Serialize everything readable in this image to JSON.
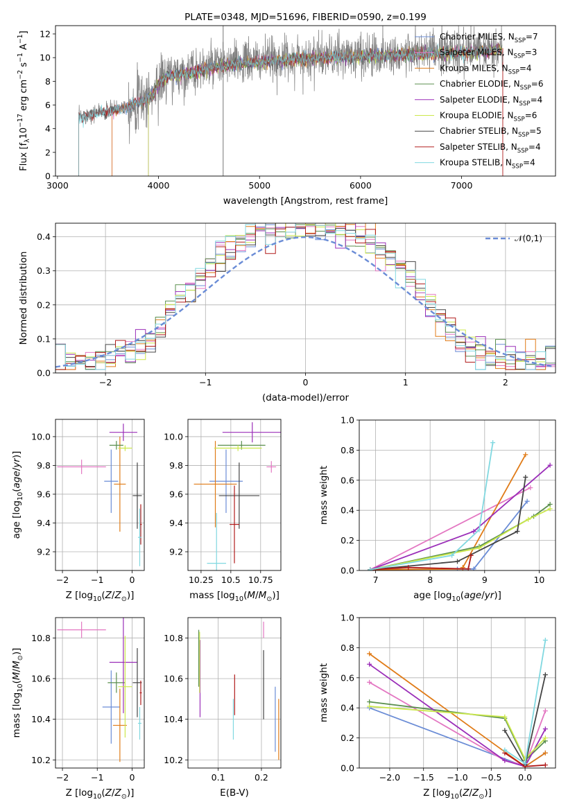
{
  "colors": {
    "Chabrier MILES": "#6a8cd6",
    "Salpeter MILES": "#e377c2",
    "Kroupa MILES": "#e07b17",
    "Chabrier ELODIE": "#5a8f4e",
    "Salpeter ELODIE": "#9a2db8",
    "Kroupa ELODIE": "#cbe84a",
    "Chabrier STELIB": "#444444",
    "Salpeter STELIB": "#b01a1a",
    "Kroupa STELIB": "#80d8e0",
    "data": "#808080"
  },
  "chart_data": [
    {
      "id": "spectrum",
      "type": "line",
      "title": "PLATE=0348, MJD=51696, FIBERID=0590, z=0.199",
      "xlabel": "wavelength [Angstrom, rest frame]",
      "ylabel": "Flux [f_λ10^-17 erg cm^-2 s^-1 A^-1]",
      "xlim": [
        2980,
        7930
      ],
      "ylim": [
        0,
        12.7
      ],
      "xticks": [
        3000,
        4000,
        5000,
        6000,
        7000
      ],
      "yticks": [
        0,
        2,
        4,
        6,
        8,
        10,
        12
      ],
      "legend_position": "right",
      "legend": [
        {
          "name": "Chabrier MILES",
          "nssp": "7"
        },
        {
          "name": "Salpeter MILES",
          "nssp": "3"
        },
        {
          "name": "Kroupa MILES",
          "nssp": "4"
        },
        {
          "name": "Chabrier ELODIE",
          "nssp": "6"
        },
        {
          "name": "Salpeter ELODIE",
          "nssp": "4"
        },
        {
          "name": "Kroupa ELODIE",
          "nssp": "6"
        },
        {
          "name": "Chabrier STELIB",
          "nssp": "5"
        },
        {
          "name": "Salpeter STELIB",
          "nssp": "4"
        },
        {
          "name": "Kroupa STELIB",
          "nssp": "4"
        }
      ],
      "continuum": {
        "wavelength": [
          3210,
          3400,
          3550,
          3700,
          3850,
          3950,
          4000,
          4100,
          4300,
          4500,
          4800,
          5100,
          5400,
          5700,
          6000,
          6300,
          6600,
          6900,
          7200,
          7400
        ],
        "flux": [
          5.0,
          5.4,
          5.6,
          6.0,
          6.5,
          7.0,
          8.0,
          8.5,
          8.8,
          9.2,
          9.6,
          9.8,
          10.0,
          10.1,
          10.2,
          10.3,
          10.4,
          10.5,
          10.6,
          10.8
        ]
      },
      "model_starts": {
        "Chabrier MILES": 3540,
        "Salpeter MILES": 3540,
        "Kroupa MILES": 3540,
        "Chabrier ELODIE": 3900,
        "Salpeter ELODIE": 3900,
        "Kroupa ELODIE": 3900,
        "Chabrier STELIB": 3210,
        "Salpeter STELIB": 3210,
        "Kroupa STELIB": 3210
      },
      "data_range": [
        3210,
        7410
      ]
    },
    {
      "id": "residuals",
      "type": "histogram",
      "xlabel": "(data-model)/error",
      "ylabel": "Normed distribution",
      "xlim": [
        -2.5,
        2.5
      ],
      "ylim": [
        0,
        0.44
      ],
      "xticks": [
        -2,
        -1,
        0,
        1,
        2
      ],
      "yticks": [
        0.0,
        0.1,
        0.2,
        0.3,
        0.4
      ],
      "legend_label": "𝒩(0,1)",
      "legend_position": "top-right",
      "bin_width": 0.1,
      "gaussian": {
        "mu": 0,
        "sigma": 1
      }
    },
    {
      "id": "z-age",
      "type": "errorbar",
      "xlabel": "Z [log₁₀(Z/Z⊙)]",
      "ylabel": "age  [log₁₀(age/yr)]",
      "xlim": [
        -2.2,
        0.35
      ],
      "ylim": [
        9.07,
        10.12
      ],
      "xticks": [
        -2,
        -1,
        0
      ],
      "yticks": [
        9.2,
        9.4,
        9.6,
        9.8,
        10.0
      ],
      "points": [
        {
          "model": "Chabrier MILES",
          "x": -0.6,
          "xerr": 0.2,
          "y": 9.69,
          "yerr": 0.22
        },
        {
          "model": "Salpeter MILES",
          "x": -1.45,
          "xerr": 0.7,
          "y": 9.79,
          "yerr": 0.05
        },
        {
          "model": "Kroupa MILES",
          "x": -0.35,
          "xerr": 0.17,
          "y": 9.67,
          "yerr": 0.33
        },
        {
          "model": "Chabrier ELODIE",
          "x": -0.45,
          "xerr": 0.2,
          "y": 9.94,
          "yerr": 0.03
        },
        {
          "model": "Salpeter ELODIE",
          "x": -0.25,
          "xerr": 0.4,
          "y": 10.03,
          "yerr": 0.06
        },
        {
          "model": "Kroupa ELODIE",
          "x": -0.2,
          "xerr": 0.2,
          "y": 9.92,
          "yerr": 0.02
        },
        {
          "model": "Chabrier STELIB",
          "x": 0.15,
          "xerr": 0.13,
          "y": 9.59,
          "yerr": 0.23
        },
        {
          "model": "Salpeter STELIB",
          "x": 0.25,
          "xerr": 0.03,
          "y": 9.39,
          "yerr": 0.14
        },
        {
          "model": "Kroupa STELIB",
          "x": 0.22,
          "xerr": 0.05,
          "y": 9.3,
          "yerr": 0.2
        }
      ]
    },
    {
      "id": "mass-age",
      "type": "errorbar",
      "xlabel": "mass [log₁₀(M/M⊙)]",
      "ylabel": "",
      "xlim": [
        10.14,
        10.92
      ],
      "ylim": [
        9.07,
        10.12
      ],
      "xticks": [
        10.25,
        10.5,
        10.75
      ],
      "yticks": [
        9.2,
        9.4,
        9.6,
        9.8,
        10.0
      ],
      "points": [
        {
          "model": "Chabrier MILES",
          "x": 10.46,
          "xerr": 0.14,
          "y": 9.69,
          "yerr": 0.22
        },
        {
          "model": "Salpeter MILES",
          "x": 10.84,
          "xerr": 0.04,
          "y": 9.79,
          "yerr": 0.04
        },
        {
          "model": "Kroupa MILES",
          "x": 10.37,
          "xerr": 0.18,
          "y": 9.67,
          "yerr": 0.3
        },
        {
          "model": "Chabrier ELODIE",
          "x": 10.59,
          "xerr": 0.2,
          "y": 9.94,
          "yerr": 0.03
        },
        {
          "model": "Salpeter ELODIE",
          "x": 10.68,
          "xerr": 0.25,
          "y": 10.03,
          "yerr": 0.07
        },
        {
          "model": "Kroupa ELODIE",
          "x": 10.56,
          "xerr": 0.2,
          "y": 9.92,
          "yerr": 0.02
        },
        {
          "model": "Chabrier STELIB",
          "x": 10.57,
          "xerr": 0.17,
          "y": 9.59,
          "yerr": 0.23
        },
        {
          "model": "Salpeter STELIB",
          "x": 10.53,
          "xerr": 0.04,
          "y": 9.39,
          "yerr": 0.27
        },
        {
          "model": "Kroupa STELIB",
          "x": 10.38,
          "xerr": 0.08,
          "y": 9.12,
          "yerr": 0.35
        }
      ]
    },
    {
      "id": "age-weight",
      "type": "line",
      "xlabel": "age  [log₁₀(age/yr)]",
      "ylabel": "mass weight",
      "xlim": [
        6.7,
        10.3
      ],
      "ylim": [
        0,
        1.0
      ],
      "xticks": [
        7,
        8,
        9,
        10
      ],
      "yticks": [
        0.0,
        0.2,
        0.4,
        0.6,
        0.8,
        1.0
      ],
      "series": [
        {
          "model": "Chabrier MILES",
          "x": [
            6.9,
            8.5,
            8.8,
            9.78
          ],
          "y": [
            0.005,
            0.01,
            0.01,
            0.46
          ]
        },
        {
          "model": "Salpeter MILES",
          "x": [
            6.9,
            9.84
          ],
          "y": [
            0.005,
            0.55
          ]
        },
        {
          "model": "Kroupa MILES",
          "x": [
            6.9,
            8.6,
            8.6,
            9.75
          ],
          "y": [
            0.005,
            0.01,
            0.02,
            0.77
          ]
        },
        {
          "model": "Chabrier ELODIE",
          "x": [
            6.9,
            8.9,
            9.9,
            10.2
          ],
          "y": [
            0.005,
            0.16,
            0.36,
            0.44
          ]
        },
        {
          "model": "Salpeter ELODIE",
          "x": [
            6.9,
            8.8,
            10.2
          ],
          "y": [
            0.005,
            0.26,
            0.7
          ]
        },
        {
          "model": "Kroupa ELODIE",
          "x": [
            6.9,
            8.9,
            9.8,
            10.2
          ],
          "y": [
            0.005,
            0.15,
            0.34,
            0.41
          ]
        },
        {
          "model": "Chabrier STELIB",
          "x": [
            6.9,
            8.5,
            9.6,
            9.75
          ],
          "y": [
            0.005,
            0.06,
            0.26,
            0.62
          ]
        },
        {
          "model": "Salpeter STELIB",
          "x": [
            6.9,
            7.6,
            8.7,
            8.75
          ],
          "y": [
            0.005,
            0.02,
            0.01,
            0.1
          ]
        },
        {
          "model": "Kroupa STELIB",
          "x": [
            6.9,
            8.4,
            8.9,
            9.15
          ],
          "y": [
            0.005,
            0.1,
            0.27,
            0.85
          ]
        }
      ]
    },
    {
      "id": "z-mass",
      "type": "errorbar",
      "xlabel": "Z [log₁₀(Z/Z⊙)]",
      "ylabel": "mass [log₁₀(M/M⊙)]",
      "xlim": [
        -2.2,
        0.35
      ],
      "ylim": [
        10.16,
        10.9
      ],
      "xticks": [
        -2,
        -1,
        0
      ],
      "yticks": [
        10.2,
        10.4,
        10.6,
        10.8
      ],
      "points": [
        {
          "model": "Chabrier MILES",
          "x": -0.6,
          "xerr": 0.25,
          "y": 10.46,
          "yerr": 0.18
        },
        {
          "model": "Salpeter MILES",
          "x": -1.45,
          "xerr": 0.7,
          "y": 10.84,
          "yerr": 0.04
        },
        {
          "model": "Kroupa MILES",
          "x": -0.35,
          "xerr": 0.2,
          "y": 10.37,
          "yerr": 0.18
        },
        {
          "model": "Chabrier ELODIE",
          "x": -0.45,
          "xerr": 0.25,
          "y": 10.58,
          "yerr": 0.05
        },
        {
          "model": "Salpeter ELODIE",
          "x": -0.25,
          "xerr": 0.4,
          "y": 10.68,
          "yerr": 0.25
        },
        {
          "model": "Kroupa ELODIE",
          "x": -0.2,
          "xerr": 0.2,
          "y": 10.56,
          "yerr": 0.25
        },
        {
          "model": "Chabrier STELIB",
          "x": 0.15,
          "xerr": 0.13,
          "y": 10.58,
          "yerr": 0.17
        },
        {
          "model": "Salpeter STELIB",
          "x": 0.25,
          "xerr": 0.03,
          "y": 10.53,
          "yerr": 0.06
        },
        {
          "model": "Kroupa STELIB",
          "x": 0.22,
          "xerr": 0.05,
          "y": 10.38,
          "yerr": 0.08
        }
      ]
    },
    {
      "id": "ebv-mass",
      "type": "errorbar",
      "xlabel": "E(B-V)",
      "ylabel": "",
      "xlim": [
        0.03,
        0.245
      ],
      "ylim": [
        10.16,
        10.9
      ],
      "xticks": [
        0.1,
        0.2
      ],
      "yticks": [
        10.2,
        10.4,
        10.6,
        10.8
      ],
      "points": [
        {
          "model": "Chabrier MILES",
          "x": 0.232,
          "xerr": 0,
          "y": 10.4,
          "yerr": 0.16
        },
        {
          "model": "Salpeter MILES",
          "x": 0.205,
          "xerr": 0,
          "y": 10.84,
          "yerr": 0.04
        },
        {
          "model": "Kroupa MILES",
          "x": 0.24,
          "xerr": 0,
          "y": 10.35,
          "yerr": 0.15
        },
        {
          "model": "Chabrier ELODIE",
          "x": 0.055,
          "xerr": 0,
          "y": 10.7,
          "yerr": 0.14
        },
        {
          "model": "Salpeter ELODIE",
          "x": 0.058,
          "xerr": 0,
          "y": 10.6,
          "yerr": 0.19
        },
        {
          "model": "Kroupa ELODIE",
          "x": 0.057,
          "xerr": 0,
          "y": 10.68,
          "yerr": 0.15
        },
        {
          "model": "Chabrier STELIB",
          "x": 0.205,
          "xerr": 0,
          "y": 10.57,
          "yerr": 0.17
        },
        {
          "model": "Salpeter STELIB",
          "x": 0.138,
          "xerr": 0,
          "y": 10.52,
          "yerr": 0.1
        },
        {
          "model": "Kroupa STELIB",
          "x": 0.135,
          "xerr": 0,
          "y": 10.4,
          "yerr": 0.1
        }
      ]
    },
    {
      "id": "z-weight",
      "type": "line",
      "xlabel": "Z [log₁₀(Z/Z⊙)]",
      "ylabel": "mass weight",
      "xlim": [
        -2.45,
        0.45
      ],
      "ylim": [
        0,
        1.0
      ],
      "xticks": [
        -2.0,
        -1.5,
        -1.0,
        -0.5,
        0.0
      ],
      "yticks": [
        0.0,
        0.2,
        0.4,
        0.6,
        0.8,
        1.0
      ],
      "series": [
        {
          "model": "Chabrier MILES",
          "x": [
            -2.3,
            0.0,
            0.3
          ],
          "y": [
            0.4,
            0.01,
            0.1
          ]
        },
        {
          "model": "Salpeter MILES",
          "x": [
            -2.3,
            -0.3,
            0.0,
            0.3
          ],
          "y": [
            0.57,
            0.05,
            0.02,
            0.38
          ]
        },
        {
          "model": "Kroupa MILES",
          "x": [
            -2.3,
            0.0,
            0.3
          ],
          "y": [
            0.76,
            0.01,
            0.1
          ]
        },
        {
          "model": "Chabrier ELODIE",
          "x": [
            -2.3,
            -0.3,
            0.0,
            0.3
          ],
          "y": [
            0.44,
            0.33,
            0.05,
            0.18
          ]
        },
        {
          "model": "Salpeter ELODIE",
          "x": [
            -2.3,
            -0.3,
            0.0,
            0.3
          ],
          "y": [
            0.69,
            0.05,
            0.01,
            0.26
          ]
        },
        {
          "model": "Kroupa ELODIE",
          "x": [
            -2.3,
            -0.3,
            0.0,
            0.3
          ],
          "y": [
            0.41,
            0.34,
            0.06,
            0.2
          ]
        },
        {
          "model": "Chabrier STELIB",
          "x": [
            -0.3,
            0.0,
            0.3
          ],
          "y": [
            0.25,
            0.02,
            0.62
          ]
        },
        {
          "model": "Salpeter STELIB",
          "x": [
            -0.3,
            0.0,
            0.3
          ],
          "y": [
            0.1,
            0.01,
            0.02
          ]
        },
        {
          "model": "Kroupa STELIB",
          "x": [
            -0.3,
            0.0,
            0.3
          ],
          "y": [
            0.12,
            0.03,
            0.85
          ]
        }
      ]
    }
  ]
}
